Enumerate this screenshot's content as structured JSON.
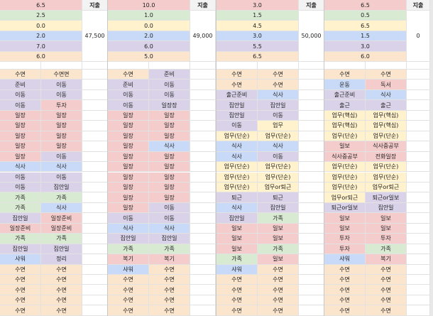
{
  "colors": {
    "pink": "#f4cccc",
    "green": "#d9ead3",
    "yellow": "#fff2cc",
    "blue": "#c9daf8",
    "purple": "#d9d2e9",
    "orange": "#fce5cd",
    "white": "#ffffff"
  },
  "row_colors": [
    "pink",
    "green",
    "yellow",
    "blue",
    "purple",
    "orange"
  ],
  "blocks": [
    {
      "summary": [
        "6.5",
        "2.5",
        "0.0",
        "2.0",
        "7.0",
        "6.0"
      ],
      "expense_label": "지출",
      "expense_value": "47,500",
      "schedule": [
        [
          [
            "수면",
            "orange"
          ],
          [
            "수면면",
            "orange"
          ]
        ],
        [
          [
            "준비",
            "purple"
          ],
          [
            "이동",
            "purple"
          ]
        ],
        [
          [
            "이동",
            "purple"
          ],
          [
            "이동",
            "purple"
          ]
        ],
        [
          [
            "이동",
            "purple"
          ],
          [
            "투자",
            "pink"
          ]
        ],
        [
          [
            "일장",
            "pink"
          ],
          [
            "일장",
            "pink"
          ]
        ],
        [
          [
            "일장",
            "pink"
          ],
          [
            "일장",
            "pink"
          ]
        ],
        [
          [
            "일장",
            "pink"
          ],
          [
            "일장",
            "pink"
          ]
        ],
        [
          [
            "일장",
            "pink"
          ],
          [
            "일장",
            "pink"
          ]
        ],
        [
          [
            "일장",
            "pink"
          ],
          [
            "이동",
            "purple"
          ]
        ],
        [
          [
            "식사",
            "blue"
          ],
          [
            "식사",
            "blue"
          ]
        ],
        [
          [
            "이동",
            "purple"
          ],
          [
            "이동",
            "purple"
          ]
        ],
        [
          [
            "이동",
            "purple"
          ],
          [
            "집안일",
            "purple"
          ]
        ],
        [
          [
            "가족",
            "green"
          ],
          [
            "가족",
            "green"
          ]
        ],
        [
          [
            "가족",
            "green"
          ],
          [
            "식사",
            "blue"
          ]
        ],
        [
          [
            "집안일",
            "purple"
          ],
          [
            "일장준비",
            "pink"
          ]
        ],
        [
          [
            "일장준비",
            "pink"
          ],
          [
            "일장준비",
            "pink"
          ]
        ],
        [
          [
            "가족",
            "green"
          ],
          [
            "가족",
            "green"
          ]
        ],
        [
          [
            "집안일",
            "purple"
          ],
          [
            "집안일",
            "purple"
          ]
        ],
        [
          [
            "샤워",
            "blue"
          ],
          [
            "정리",
            "purple"
          ]
        ],
        [
          [
            "수면",
            "orange"
          ],
          [
            "수면",
            "orange"
          ]
        ],
        [
          [
            "수면",
            "orange"
          ],
          [
            "수면",
            "orange"
          ]
        ],
        [
          [
            "수면",
            "orange"
          ],
          [
            "수면",
            "orange"
          ]
        ],
        [
          [
            "수면",
            "orange"
          ],
          [
            "수면",
            "orange"
          ]
        ],
        [
          [
            "수면",
            "orange"
          ],
          [
            "수면",
            "orange"
          ]
        ]
      ]
    },
    {
      "summary": [
        "10.0",
        "1.0",
        "0.0",
        "2.0",
        "6.0",
        "5.0"
      ],
      "expense_label": "지출",
      "expense_value": "49,000",
      "schedule": [
        [
          [
            "수면",
            "orange"
          ],
          [
            "준비",
            "purple"
          ]
        ],
        [
          [
            "준비",
            "purple"
          ],
          [
            "이동",
            "purple"
          ]
        ],
        [
          [
            "이동",
            "purple"
          ],
          [
            "이동",
            "purple"
          ]
        ],
        [
          [
            "이동",
            "purple"
          ],
          [
            "일장장",
            "purple"
          ]
        ],
        [
          [
            "일장",
            "pink"
          ],
          [
            "일장",
            "pink"
          ]
        ],
        [
          [
            "일장",
            "pink"
          ],
          [
            "일장",
            "pink"
          ]
        ],
        [
          [
            "일장",
            "pink"
          ],
          [
            "일장",
            "pink"
          ]
        ],
        [
          [
            "일장",
            "pink"
          ],
          [
            "식사",
            "blue"
          ]
        ],
        [
          [
            "일장",
            "pink"
          ],
          [
            "일장",
            "pink"
          ]
        ],
        [
          [
            "일장",
            "pink"
          ],
          [
            "일장",
            "pink"
          ]
        ],
        [
          [
            "일장",
            "pink"
          ],
          [
            "일장",
            "pink"
          ]
        ],
        [
          [
            "일장",
            "pink"
          ],
          [
            "일장",
            "pink"
          ]
        ],
        [
          [
            "일장",
            "pink"
          ],
          [
            "일장",
            "pink"
          ]
        ],
        [
          [
            "일장",
            "pink"
          ],
          [
            "이동",
            "purple"
          ]
        ],
        [
          [
            "이동",
            "purple"
          ],
          [
            "이동",
            "purple"
          ]
        ],
        [
          [
            "식사",
            "blue"
          ],
          [
            "식사",
            "blue"
          ]
        ],
        [
          [
            "집안일",
            "purple"
          ],
          [
            "집안일",
            "purple"
          ]
        ],
        [
          [
            "가족",
            "green"
          ],
          [
            "가족",
            "green"
          ]
        ],
        [
          [
            "복기",
            "pink"
          ],
          [
            "복기",
            "pink"
          ]
        ],
        [
          [
            "샤워",
            "blue"
          ],
          [
            "수면",
            "orange"
          ]
        ],
        [
          [
            "수면",
            "orange"
          ],
          [
            "수면",
            "orange"
          ]
        ],
        [
          [
            "수면",
            "orange"
          ],
          [
            "수면",
            "orange"
          ]
        ],
        [
          [
            "수면",
            "orange"
          ],
          [
            "수면",
            "orange"
          ]
        ],
        [
          [
            "수면",
            "orange"
          ],
          [
            "수면",
            "orange"
          ]
        ]
      ]
    },
    {
      "summary": [
        "3.0",
        "1.5",
        "4.5",
        "3.0",
        "5.5",
        "6.5"
      ],
      "expense_label": "지출",
      "expense_value": "50,000",
      "schedule": [
        [
          [
            "수면",
            "orange"
          ],
          [
            "수면",
            "orange"
          ]
        ],
        [
          [
            "수면",
            "orange"
          ],
          [
            "수면",
            "orange"
          ]
        ],
        [
          [
            "출근준비",
            "purple"
          ],
          [
            "식사",
            "blue"
          ]
        ],
        [
          [
            "집안일",
            "purple"
          ],
          [
            "집안일",
            "purple"
          ]
        ],
        [
          [
            "집안일",
            "purple"
          ],
          [
            "이동",
            "purple"
          ]
        ],
        [
          [
            "이동",
            "purple"
          ],
          [
            "업무",
            "yellow"
          ]
        ],
        [
          [
            "업무(단순)",
            "yellow"
          ],
          [
            "업무(단순)",
            "yellow"
          ]
        ],
        [
          [
            "식사",
            "blue"
          ],
          [
            "식사",
            "blue"
          ]
        ],
        [
          [
            "식사",
            "blue"
          ],
          [
            "이동",
            "purple"
          ]
        ],
        [
          [
            "업무(단순)",
            "yellow"
          ],
          [
            "업무(단순)",
            "yellow"
          ]
        ],
        [
          [
            "업무(단순)",
            "yellow"
          ],
          [
            "업무(단순)",
            "yellow"
          ]
        ],
        [
          [
            "업무(단순)",
            "yellow"
          ],
          [
            "업무or퇴근",
            "yellow"
          ]
        ],
        [
          [
            "퇴근",
            "purple"
          ],
          [
            "퇴근",
            "purple"
          ]
        ],
        [
          [
            "식사",
            "blue"
          ],
          [
            "집안일",
            "purple"
          ]
        ],
        [
          [
            "집안일",
            "purple"
          ],
          [
            "가족",
            "green"
          ]
        ],
        [
          [
            "일보",
            "pink"
          ],
          [
            "일보",
            "pink"
          ]
        ],
        [
          [
            "일보",
            "pink"
          ],
          [
            "일보",
            "pink"
          ]
        ],
        [
          [
            "일보",
            "pink"
          ],
          [
            "가족",
            "green"
          ]
        ],
        [
          [
            "가족",
            "green"
          ],
          [
            "일보",
            "pink"
          ]
        ],
        [
          [
            "샤워",
            "blue"
          ],
          [
            "수면",
            "orange"
          ]
        ],
        [
          [
            "수면",
            "orange"
          ],
          [
            "수면",
            "orange"
          ]
        ],
        [
          [
            "수면",
            "orange"
          ],
          [
            "수면",
            "orange"
          ]
        ],
        [
          [
            "수면",
            "orange"
          ],
          [
            "수면",
            "orange"
          ]
        ],
        [
          [
            "수면",
            "orange"
          ],
          [
            "수면",
            "orange"
          ]
        ]
      ]
    },
    {
      "summary": [
        "6.5",
        "0.5",
        "6.5",
        "1.5",
        "3.0",
        "6.0"
      ],
      "expense_label": "지출",
      "expense_value": "0",
      "schedule": [
        [
          [
            "수면",
            "orange"
          ],
          [
            "수면",
            "orange"
          ]
        ],
        [
          [
            "운동",
            "blue"
          ],
          [
            "독서",
            "pink"
          ]
        ],
        [
          [
            "출근준비",
            "purple"
          ],
          [
            "식사",
            "blue"
          ]
        ],
        [
          [
            "출근",
            "purple"
          ],
          [
            "출근",
            "purple"
          ]
        ],
        [
          [
            "업무(핵심)",
            "yellow"
          ],
          [
            "업무(핵심)",
            "yellow"
          ]
        ],
        [
          [
            "업무(핵심)",
            "yellow"
          ],
          [
            "업무(핵심)",
            "yellow"
          ]
        ],
        [
          [
            "업무(단순)",
            "yellow"
          ],
          [
            "업무(단순)",
            "yellow"
          ]
        ],
        [
          [
            "일보",
            "pink"
          ],
          [
            "식사중공부",
            "pink"
          ]
        ],
        [
          [
            "식사중공부",
            "pink"
          ],
          [
            "전화일장",
            "pink"
          ]
        ],
        [
          [
            "업무(단순)",
            "yellow"
          ],
          [
            "업무(단순)",
            "yellow"
          ]
        ],
        [
          [
            "업무(단순)",
            "yellow"
          ],
          [
            "업무(단순)",
            "yellow"
          ]
        ],
        [
          [
            "업무(단순)",
            "yellow"
          ],
          [
            "업무or퇴근",
            "yellow"
          ]
        ],
        [
          [
            "업무or퇴근",
            "yellow"
          ],
          [
            "퇴근or일보",
            "purple"
          ]
        ],
        [
          [
            "퇴근or일보",
            "purple"
          ],
          [
            "집안일",
            "purple"
          ]
        ],
        [
          [
            "일보",
            "pink"
          ],
          [
            "일보",
            "pink"
          ]
        ],
        [
          [
            "일보",
            "pink"
          ],
          [
            "일보",
            "pink"
          ]
        ],
        [
          [
            "투자",
            "pink"
          ],
          [
            "투자",
            "pink"
          ]
        ],
        [
          [
            "투자",
            "pink"
          ],
          [
            "가족",
            "green"
          ]
        ],
        [
          [
            "샤워",
            "blue"
          ],
          [
            "복기",
            "pink"
          ]
        ],
        [
          [
            "수면",
            "orange"
          ],
          [
            "수면",
            "orange"
          ]
        ],
        [
          [
            "수면",
            "orange"
          ],
          [
            "수면",
            "orange"
          ]
        ],
        [
          [
            "수면",
            "orange"
          ],
          [
            "수면",
            "orange"
          ]
        ],
        [
          [
            "수면",
            "orange"
          ],
          [
            "수면",
            "orange"
          ]
        ],
        [
          [
            "수면",
            "orange"
          ],
          [
            "수면",
            "orange"
          ]
        ]
      ]
    }
  ]
}
